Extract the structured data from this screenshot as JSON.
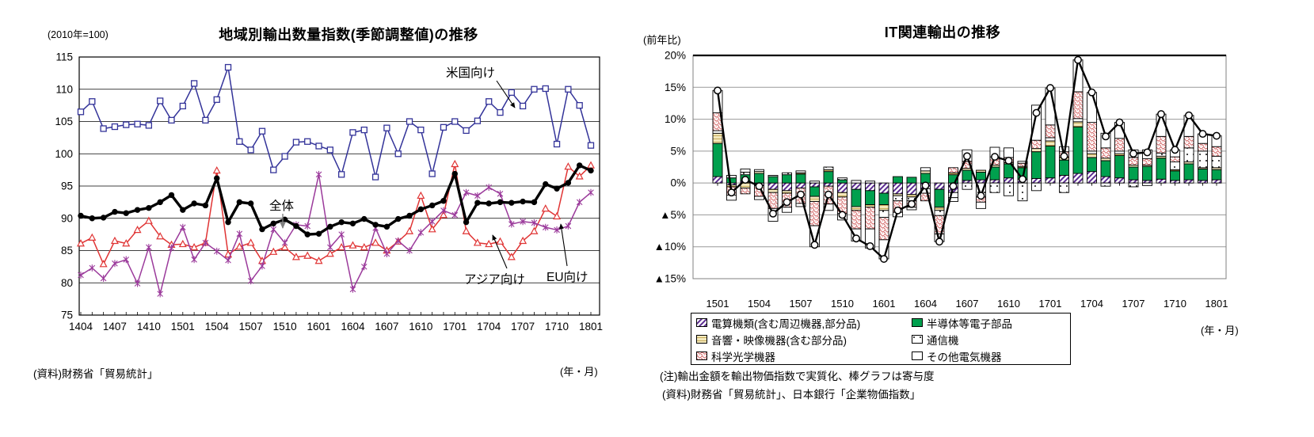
{
  "chart_data": [
    {
      "type": "line",
      "title": "地域別輸出数量指数(季節調整値)の推移",
      "unit_label": "(2010年=100)",
      "xaxis_label": "(年・月)",
      "source": "(資料)財務省「貿易統計」",
      "ylim": [
        75,
        115
      ],
      "ytick_step": 5,
      "x_tick_label_every": 3,
      "grid": true,
      "x": [
        "1404",
        "1405",
        "1406",
        "1407",
        "1408",
        "1409",
        "1410",
        "1411",
        "1412",
        "1501",
        "1502",
        "1503",
        "1504",
        "1505",
        "1506",
        "1507",
        "1508",
        "1509",
        "1510",
        "1511",
        "1512",
        "1601",
        "1602",
        "1603",
        "1604",
        "1605",
        "1606",
        "1607",
        "1608",
        "1609",
        "1610",
        "1611",
        "1612",
        "1701",
        "1702",
        "1703",
        "1704",
        "1705",
        "1706",
        "1707",
        "1708",
        "1709",
        "1710",
        "1711",
        "1712",
        "1801"
      ],
      "series": [
        {
          "name": "米国向け",
          "color": "#333399",
          "marker": "square",
          "values": [
            106.5,
            108.1,
            103.9,
            104.2,
            104.5,
            104.6,
            104.4,
            108.2,
            105.2,
            107.4,
            110.9,
            105.2,
            108.4,
            113.4,
            101.9,
            100.6,
            103.5,
            97.5,
            99.6,
            101.8,
            101.9,
            101.2,
            100.6,
            96.8,
            103.3,
            103.7,
            96.4,
            104.0,
            100.0,
            105.0,
            103.7,
            96.9,
            104.1,
            105.0,
            103.6,
            105.1,
            108.1,
            106.4,
            109.5,
            107.4,
            110.0,
            110.1,
            101.5,
            110.0,
            107.5,
            101.3
          ]
        },
        {
          "name": "全体",
          "color": "#000000",
          "marker": "circle",
          "values": [
            90.4,
            90.0,
            90.1,
            91.0,
            90.8,
            91.3,
            91.6,
            92.5,
            93.6,
            91.3,
            92.3,
            92.0,
            96.2,
            89.4,
            92.5,
            92.3,
            88.3,
            89.2,
            89.8,
            88.8,
            87.5,
            87.6,
            88.7,
            89.4,
            89.2,
            89.9,
            89.0,
            88.7,
            89.9,
            90.4,
            91.4,
            92.0,
            92.7,
            96.9,
            89.4,
            92.4,
            92.3,
            92.5,
            92.4,
            92.6,
            92.5,
            95.3,
            94.6,
            95.5,
            98.2,
            97.4
          ]
        },
        {
          "name": "アジア向け",
          "color": "#e03434",
          "marker": "triangle",
          "values": [
            86.1,
            87.0,
            82.9,
            86.5,
            86.1,
            88.2,
            89.6,
            87.2,
            85.9,
            86.0,
            85.5,
            86.2,
            97.4,
            84.4,
            85.6,
            86.2,
            83.4,
            84.8,
            85.5,
            84.0,
            84.2,
            83.4,
            84.5,
            85.5,
            85.8,
            85.5,
            86.2,
            85.0,
            86.4,
            88.0,
            93.5,
            88.3,
            90.5,
            98.4,
            88.0,
            86.2,
            86.0,
            86.4,
            84.0,
            86.5,
            88.0,
            91.5,
            90.3,
            98.0,
            96.5,
            98.2
          ]
        },
        {
          "name": "EU向け",
          "color": "#9b3a9b",
          "marker": "star",
          "values": [
            81.2,
            82.3,
            80.7,
            83.0,
            83.6,
            79.9,
            85.5,
            78.3,
            85.4,
            88.6,
            83.6,
            86.2,
            84.9,
            83.5,
            87.6,
            80.3,
            82.6,
            88.3,
            86.2,
            89.0,
            88.8,
            96.8,
            85.5,
            87.5,
            79.0,
            82.5,
            88.5,
            84.5,
            86.5,
            85.0,
            87.8,
            89.5,
            91.2,
            90.5,
            94.0,
            93.5,
            94.8,
            93.8,
            89.1,
            89.5,
            89.3,
            88.6,
            88.2,
            88.8,
            92.5,
            94.0
          ]
        }
      ]
    },
    {
      "type": "stacked-bar-line",
      "title": "IT関連輸出の推移",
      "unit_label": "(前年比)",
      "xaxis_label": "(年・月)",
      "notes": [
        "(注)輸出金額を輸出物価指数で実質化、棒グラフは寄与度",
        "(資料)財務省「貿易統計」、日本銀行「企業物価指数」"
      ],
      "ylim": [
        -15,
        20
      ],
      "ytick_step": 5,
      "x_tick_label_every": 3,
      "negative_tick_prefix": "▲",
      "x": [
        "1501",
        "1502",
        "1503",
        "1504",
        "1505",
        "1506",
        "1507",
        "1508",
        "1509",
        "1510",
        "1511",
        "1512",
        "1601",
        "1602",
        "1603",
        "1604",
        "1605",
        "1606",
        "1607",
        "1608",
        "1609",
        "1610",
        "1611",
        "1612",
        "1701",
        "1702",
        "1703",
        "1704",
        "1705",
        "1706",
        "1707",
        "1708",
        "1709",
        "1710",
        "1711",
        "1712",
        "1801"
      ],
      "bar_series": [
        {
          "name": "電算機類(含む周辺機器,部分品)",
          "pattern": "hatch",
          "color": "#5c2d91",
          "values": [
            1.0,
            -0.3,
            0.3,
            -0.4,
            -1.0,
            -1.2,
            -0.8,
            -0.6,
            -0.5,
            -1.5,
            -1.0,
            -1.2,
            -1.6,
            -1.7,
            -1.8,
            -0.9,
            -1.0,
            -1.5,
            0.4,
            0.5,
            0.5,
            0.8,
            0.6,
            0.7,
            0.8,
            1.2,
            1.5,
            1.8,
            1.0,
            0.8,
            0.5,
            0.4,
            0.6,
            0.4,
            0.5,
            0.4,
            0.5
          ]
        },
        {
          "name": "半導体等電子部品",
          "pattern": "solid",
          "color": "#00a04e",
          "values": [
            5.2,
            0.8,
            1.0,
            1.5,
            1.0,
            1.3,
            1.4,
            -1.5,
            1.8,
            0.5,
            -2.7,
            -2.2,
            -1.8,
            1.0,
            0.9,
            1.5,
            -2.8,
            1.3,
            1.6,
            1.2,
            2.0,
            2.2,
            1.8,
            4.2,
            5.0,
            2.4,
            7.3,
            2.2,
            2.5,
            3.5,
            2.0,
            2.2,
            3.3,
            1.5,
            2.5,
            1.8,
            1.6
          ]
        },
        {
          "name": "音響・映像機器(含む部分品)",
          "pattern": "hstripe",
          "color": "#f4e9bd",
          "values": [
            1.6,
            -0.3,
            -0.8,
            0.3,
            -0.5,
            -0.4,
            0.2,
            -0.8,
            0.3,
            -0.7,
            -0.6,
            -0.4,
            -0.9,
            -0.3,
            -0.4,
            0.4,
            -0.5,
            0.3,
            0.3,
            0.3,
            0.3,
            0.2,
            0.2,
            0.5,
            0.8,
            0.4,
            0.8,
            0.6,
            0.4,
            0.3,
            0.3,
            0.2,
            0.3,
            0.2,
            0.3,
            0.2,
            0.3
          ]
        },
        {
          "name": "通信機",
          "pattern": "dots",
          "color": "#111111",
          "values": [
            0.4,
            0.4,
            0.4,
            0.3,
            0.2,
            0.3,
            0.3,
            0.3,
            0.4,
            0.3,
            0.4,
            0.3,
            -1.1,
            -0.8,
            -0.6,
            -0.7,
            -0.8,
            -0.8,
            -1.0,
            -2.2,
            -1.5,
            -2.0,
            -2.8,
            -1.2,
            0.5,
            -1.5,
            0.5,
            0.4,
            -0.5,
            0.4,
            -0.6,
            -0.4,
            0.5,
            1.2,
            2.2,
            2.6,
            1.8
          ]
        },
        {
          "name": "科学光学機器",
          "pattern": "waves",
          "color": "#cf5555",
          "values": [
            2.8,
            -1.3,
            -0.9,
            -1.7,
            -2.5,
            -2.2,
            -2.4,
            -3.8,
            -2.8,
            -2.6,
            -2.9,
            -3.4,
            -3.5,
            -1.8,
            -1.0,
            -1.2,
            -2.9,
            0.8,
            1.1,
            -0.8,
            1.3,
            0.8,
            0.5,
            1.3,
            2.0,
            0.9,
            4.2,
            4.5,
            1.6,
            2.0,
            1.2,
            1.0,
            2.6,
            0.8,
            1.8,
            1.2,
            1.5
          ]
        },
        {
          "name": "その他電気機器",
          "pattern": "plain",
          "color": "#ffffff",
          "values": [
            3.5,
            -0.8,
            0.5,
            -0.5,
            -2.0,
            -0.8,
            -0.5,
            -3.3,
            -1.0,
            -1.0,
            -1.9,
            -3.0,
            -3.0,
            -0.7,
            -0.4,
            0.5,
            -1.2,
            -0.6,
            1.8,
            -1.0,
            1.5,
            1.5,
            0.3,
            5.5,
            5.8,
            0.8,
            5.0,
            4.7,
            2.3,
            2.5,
            1.2,
            1.4,
            3.5,
            1.1,
            3.3,
            1.5,
            1.7
          ]
        }
      ],
      "line_values": [
        14.5,
        -1.5,
        0.5,
        -0.5,
        -4.8,
        -3.0,
        -1.8,
        -9.7,
        -1.8,
        -5.0,
        -8.7,
        -9.9,
        -11.9,
        -4.3,
        -3.3,
        -0.4,
        -9.2,
        -0.5,
        4.2,
        -2.0,
        4.1,
        3.5,
        0.6,
        11.0,
        14.9,
        4.2,
        19.3,
        14.2,
        7.3,
        9.5,
        4.6,
        4.8,
        10.8,
        5.2,
        10.6,
        7.7,
        7.4
      ]
    }
  ]
}
